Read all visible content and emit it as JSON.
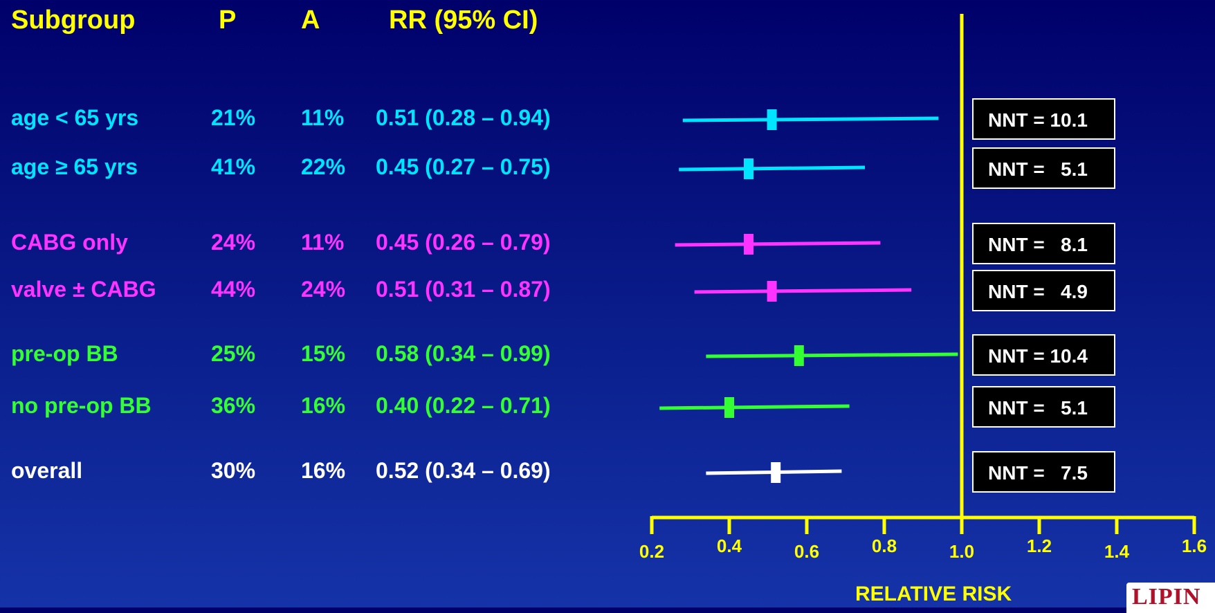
{
  "headers": {
    "subgroup": "Subgroup",
    "p": "P",
    "a": "A",
    "rr": "RR (95% CI)"
  },
  "colors": {
    "age": "#00e5ff",
    "surgery": "#ff33ff",
    "bb": "#33ff33",
    "overall": "#ffffff",
    "axis": "#ffff00",
    "box_bg": "#000000",
    "box_border": "#ffffff"
  },
  "logo": {
    "text": "LIPIN"
  },
  "chart_data": {
    "type": "forest",
    "title": "",
    "xlabel": "RELATIVE RISK",
    "xlim": [
      0.2,
      1.6
    ],
    "reference_line": 1.0,
    "x_ticks": [
      "0.2",
      "0.4",
      "0.6",
      "0.8",
      "1.0",
      "1.2",
      "1.4",
      "1.6"
    ],
    "rows": [
      {
        "label": "age < 65 yrs",
        "p": "21%",
        "a": "11%",
        "rr_text": "0.51 (0.28 – 0.94)",
        "rr": 0.51,
        "lo": 0.28,
        "hi": 0.94,
        "group": "age",
        "nnt": "NNT = 10.1"
      },
      {
        "label": "age ≥ 65 yrs",
        "p": "41%",
        "a": "22%",
        "rr_text": "0.45 (0.27 – 0.75)",
        "rr": 0.45,
        "lo": 0.27,
        "hi": 0.75,
        "group": "age",
        "nnt": "NNT =   5.1"
      },
      {
        "label": "CABG only",
        "p": "24%",
        "a": "11%",
        "rr_text": "0.45 (0.26 – 0.79)",
        "rr": 0.45,
        "lo": 0.26,
        "hi": 0.79,
        "group": "surgery",
        "nnt": "NNT =   8.1"
      },
      {
        "label": "valve ± CABG",
        "p": "44%",
        "a": "24%",
        "rr_text": "0.51 (0.31 – 0.87)",
        "rr": 0.51,
        "lo": 0.31,
        "hi": 0.87,
        "group": "surgery",
        "nnt": "NNT =   4.9"
      },
      {
        "label": "pre-op BB",
        "p": "25%",
        "a": "15%",
        "rr_text": "0.58 (0.34 – 0.99)",
        "rr": 0.58,
        "lo": 0.34,
        "hi": 0.99,
        "group": "bb",
        "nnt": "NNT = 10.4"
      },
      {
        "label": "no pre-op BB",
        "p": "36%",
        "a": "16%",
        "rr_text": "0.40 (0.22 – 0.71)",
        "rr": 0.4,
        "lo": 0.22,
        "hi": 0.71,
        "group": "bb",
        "nnt": "NNT =   5.1"
      },
      {
        "label": "overall",
        "p": "30%",
        "a": "16%",
        "rr_text": "0.52 (0.34 – 0.69)",
        "rr": 0.52,
        "lo": 0.34,
        "hi": 0.69,
        "group": "overall",
        "nnt": "NNT =   7.5"
      }
    ]
  }
}
